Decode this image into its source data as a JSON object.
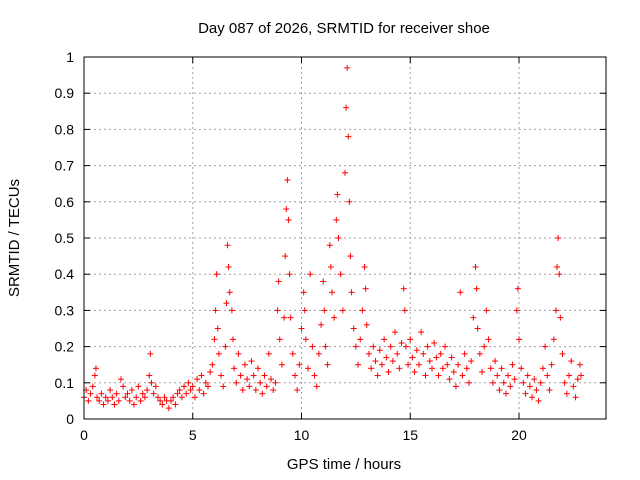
{
  "chart_data": {
    "type": "scatter",
    "title": "Day 087 of 2026, SRMTID for receiver shoe",
    "xlabel": "GPS time / hours",
    "ylabel": "SRMTID / TECUs",
    "xlim": [
      0,
      24
    ],
    "ylim": [
      0,
      1
    ],
    "xticks": [
      0,
      5,
      10,
      15,
      20
    ],
    "xtick_labels": [
      "0",
      "5",
      "10",
      "15",
      "20"
    ],
    "yticks": [
      0,
      0.1,
      0.2,
      0.3,
      0.4,
      0.5,
      0.6,
      0.7,
      0.8,
      0.9,
      1
    ],
    "ytick_labels": [
      "0",
      "0.1",
      "0.2",
      "0.3",
      "0.4",
      "0.5",
      "0.6",
      "0.7",
      "0.8",
      "0.9",
      "1"
    ],
    "grid": true,
    "marker": "+",
    "series": [
      {
        "name": "SRMTID",
        "color": "#ff0000",
        "points": [
          [
            0.0,
            0.06
          ],
          [
            0.1,
            0.08
          ],
          [
            0.2,
            0.05
          ],
          [
            0.3,
            0.07
          ],
          [
            0.4,
            0.09
          ],
          [
            0.5,
            0.12
          ],
          [
            0.55,
            0.14
          ],
          [
            0.6,
            0.06
          ],
          [
            0.7,
            0.05
          ],
          [
            0.8,
            0.07
          ],
          [
            0.9,
            0.04
          ],
          [
            1.0,
            0.06
          ],
          [
            1.1,
            0.05
          ],
          [
            1.2,
            0.08
          ],
          [
            1.3,
            0.06
          ],
          [
            1.4,
            0.04
          ],
          [
            1.5,
            0.07
          ],
          [
            1.6,
            0.05
          ],
          [
            1.7,
            0.11
          ],
          [
            1.8,
            0.09
          ],
          [
            1.9,
            0.06
          ],
          [
            2.0,
            0.07
          ],
          [
            2.1,
            0.05
          ],
          [
            2.2,
            0.08
          ],
          [
            2.3,
            0.04
          ],
          [
            2.4,
            0.06
          ],
          [
            2.5,
            0.09
          ],
          [
            2.6,
            0.05
          ],
          [
            2.7,
            0.07
          ],
          [
            2.8,
            0.06
          ],
          [
            2.9,
            0.08
          ],
          [
            3.0,
            0.12
          ],
          [
            3.05,
            0.18
          ],
          [
            3.1,
            0.1
          ],
          [
            3.2,
            0.07
          ],
          [
            3.3,
            0.09
          ],
          [
            3.4,
            0.06
          ],
          [
            3.5,
            0.05
          ],
          [
            3.6,
            0.04
          ],
          [
            3.7,
            0.06
          ],
          [
            3.8,
            0.05
          ],
          [
            3.9,
            0.03
          ],
          [
            4.0,
            0.05
          ],
          [
            4.1,
            0.06
          ],
          [
            4.2,
            0.04
          ],
          [
            4.3,
            0.07
          ],
          [
            4.4,
            0.08
          ],
          [
            4.5,
            0.06
          ],
          [
            4.6,
            0.09
          ],
          [
            4.7,
            0.07
          ],
          [
            4.8,
            0.1
          ],
          [
            4.9,
            0.08
          ],
          [
            5.0,
            0.09
          ],
          [
            5.1,
            0.06
          ],
          [
            5.2,
            0.11
          ],
          [
            5.3,
            0.08
          ],
          [
            5.4,
            0.12
          ],
          [
            5.5,
            0.07
          ],
          [
            5.6,
            0.1
          ],
          [
            5.7,
            0.09
          ],
          [
            5.8,
            0.13
          ],
          [
            5.9,
            0.15
          ],
          [
            6.0,
            0.22
          ],
          [
            6.05,
            0.3
          ],
          [
            6.1,
            0.4
          ],
          [
            6.15,
            0.25
          ],
          [
            6.2,
            0.18
          ],
          [
            6.3,
            0.12
          ],
          [
            6.4,
            0.09
          ],
          [
            6.5,
            0.2
          ],
          [
            6.55,
            0.32
          ],
          [
            6.6,
            0.48
          ],
          [
            6.65,
            0.42
          ],
          [
            6.7,
            0.35
          ],
          [
            6.8,
            0.3
          ],
          [
            6.85,
            0.22
          ],
          [
            6.9,
            0.14
          ],
          [
            7.0,
            0.1
          ],
          [
            7.1,
            0.18
          ],
          [
            7.2,
            0.12
          ],
          [
            7.3,
            0.08
          ],
          [
            7.4,
            0.15
          ],
          [
            7.5,
            0.11
          ],
          [
            7.6,
            0.09
          ],
          [
            7.7,
            0.16
          ],
          [
            7.8,
            0.12
          ],
          [
            7.9,
            0.08
          ],
          [
            8.0,
            0.14
          ],
          [
            8.1,
            0.1
          ],
          [
            8.2,
            0.07
          ],
          [
            8.3,
            0.12
          ],
          [
            8.4,
            0.09
          ],
          [
            8.5,
            0.18
          ],
          [
            8.6,
            0.11
          ],
          [
            8.7,
            0.08
          ],
          [
            8.8,
            0.1
          ],
          [
            8.9,
            0.3
          ],
          [
            8.95,
            0.38
          ],
          [
            9.0,
            0.22
          ],
          [
            9.1,
            0.15
          ],
          [
            9.2,
            0.28
          ],
          [
            9.25,
            0.45
          ],
          [
            9.3,
            0.58
          ],
          [
            9.35,
            0.66
          ],
          [
            9.4,
            0.55
          ],
          [
            9.45,
            0.4
          ],
          [
            9.5,
            0.28
          ],
          [
            9.6,
            0.18
          ],
          [
            9.7,
            0.12
          ],
          [
            9.8,
            0.08
          ],
          [
            9.9,
            0.15
          ],
          [
            10.0,
            0.25
          ],
          [
            10.1,
            0.35
          ],
          [
            10.15,
            0.3
          ],
          [
            10.2,
            0.22
          ],
          [
            10.3,
            0.14
          ],
          [
            10.4,
            0.4
          ],
          [
            10.5,
            0.2
          ],
          [
            10.6,
            0.12
          ],
          [
            10.7,
            0.09
          ],
          [
            10.8,
            0.18
          ],
          [
            10.9,
            0.26
          ],
          [
            11.0,
            0.38
          ],
          [
            11.05,
            0.3
          ],
          [
            11.1,
            0.2
          ],
          [
            11.2,
            0.15
          ],
          [
            11.3,
            0.48
          ],
          [
            11.35,
            0.42
          ],
          [
            11.4,
            0.35
          ],
          [
            11.5,
            0.28
          ],
          [
            11.6,
            0.55
          ],
          [
            11.65,
            0.62
          ],
          [
            11.7,
            0.5
          ],
          [
            11.8,
            0.4
          ],
          [
            11.9,
            0.3
          ],
          [
            12.0,
            0.68
          ],
          [
            12.05,
            0.86
          ],
          [
            12.1,
            0.97
          ],
          [
            12.15,
            0.78
          ],
          [
            12.2,
            0.6
          ],
          [
            12.25,
            0.45
          ],
          [
            12.3,
            0.35
          ],
          [
            12.4,
            0.25
          ],
          [
            12.5,
            0.2
          ],
          [
            12.6,
            0.15
          ],
          [
            12.7,
            0.22
          ],
          [
            12.8,
            0.3
          ],
          [
            12.9,
            0.42
          ],
          [
            12.95,
            0.36
          ],
          [
            13.0,
            0.26
          ],
          [
            13.1,
            0.18
          ],
          [
            13.2,
            0.14
          ],
          [
            13.3,
            0.2
          ],
          [
            13.4,
            0.16
          ],
          [
            13.5,
            0.12
          ],
          [
            13.6,
            0.19
          ],
          [
            13.7,
            0.15
          ],
          [
            13.8,
            0.22
          ],
          [
            13.9,
            0.17
          ],
          [
            14.0,
            0.13
          ],
          [
            14.1,
            0.2
          ],
          [
            14.2,
            0.16
          ],
          [
            14.3,
            0.24
          ],
          [
            14.4,
            0.18
          ],
          [
            14.5,
            0.14
          ],
          [
            14.6,
            0.21
          ],
          [
            14.7,
            0.36
          ],
          [
            14.75,
            0.3
          ],
          [
            14.8,
            0.2
          ],
          [
            14.9,
            0.15
          ],
          [
            15.0,
            0.22
          ],
          [
            15.1,
            0.17
          ],
          [
            15.2,
            0.13
          ],
          [
            15.3,
            0.19
          ],
          [
            15.4,
            0.15
          ],
          [
            15.5,
            0.24
          ],
          [
            15.6,
            0.18
          ],
          [
            15.7,
            0.12
          ],
          [
            15.8,
            0.2
          ],
          [
            15.9,
            0.16
          ],
          [
            16.0,
            0.14
          ],
          [
            16.1,
            0.21
          ],
          [
            16.2,
            0.17
          ],
          [
            16.3,
            0.12
          ],
          [
            16.4,
            0.18
          ],
          [
            16.5,
            0.14
          ],
          [
            16.6,
            0.2
          ],
          [
            16.7,
            0.15
          ],
          [
            16.8,
            0.11
          ],
          [
            16.9,
            0.17
          ],
          [
            17.0,
            0.13
          ],
          [
            17.1,
            0.09
          ],
          [
            17.2,
            0.15
          ],
          [
            17.3,
            0.35
          ],
          [
            17.4,
            0.12
          ],
          [
            17.5,
            0.18
          ],
          [
            17.6,
            0.14
          ],
          [
            17.7,
            0.1
          ],
          [
            17.8,
            0.16
          ],
          [
            17.9,
            0.28
          ],
          [
            18.0,
            0.42
          ],
          [
            18.05,
            0.36
          ],
          [
            18.1,
            0.25
          ],
          [
            18.2,
            0.18
          ],
          [
            18.3,
            0.13
          ],
          [
            18.4,
            0.2
          ],
          [
            18.5,
            0.3
          ],
          [
            18.6,
            0.22
          ],
          [
            18.7,
            0.14
          ],
          [
            18.8,
            0.1
          ],
          [
            18.9,
            0.16
          ],
          [
            19.0,
            0.12
          ],
          [
            19.1,
            0.08
          ],
          [
            19.2,
            0.14
          ],
          [
            19.3,
            0.1
          ],
          [
            19.4,
            0.07
          ],
          [
            19.5,
            0.12
          ],
          [
            19.6,
            0.09
          ],
          [
            19.7,
            0.15
          ],
          [
            19.8,
            0.11
          ],
          [
            19.9,
            0.3
          ],
          [
            19.95,
            0.36
          ],
          [
            20.0,
            0.22
          ],
          [
            20.1,
            0.14
          ],
          [
            20.2,
            0.1
          ],
          [
            20.3,
            0.07
          ],
          [
            20.4,
            0.12
          ],
          [
            20.5,
            0.09
          ],
          [
            20.6,
            0.06
          ],
          [
            20.7,
            0.11
          ],
          [
            20.8,
            0.08
          ],
          [
            20.9,
            0.05
          ],
          [
            21.0,
            0.1
          ],
          [
            21.1,
            0.14
          ],
          [
            21.2,
            0.2
          ],
          [
            21.3,
            0.12
          ],
          [
            21.4,
            0.08
          ],
          [
            21.5,
            0.15
          ],
          [
            21.6,
            0.22
          ],
          [
            21.7,
            0.3
          ],
          [
            21.75,
            0.42
          ],
          [
            21.8,
            0.5
          ],
          [
            21.85,
            0.4
          ],
          [
            21.9,
            0.28
          ],
          [
            22.0,
            0.18
          ],
          [
            22.1,
            0.1
          ],
          [
            22.2,
            0.07
          ],
          [
            22.3,
            0.12
          ],
          [
            22.4,
            0.16
          ],
          [
            22.5,
            0.09
          ],
          [
            22.6,
            0.06
          ],
          [
            22.7,
            0.11
          ],
          [
            22.8,
            0.15
          ],
          [
            22.85,
            0.12
          ]
        ]
      }
    ]
  }
}
